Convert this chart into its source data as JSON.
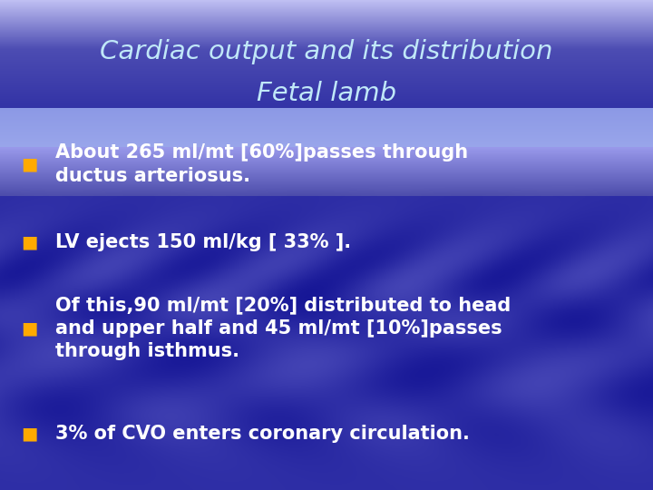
{
  "title_line1": "Cardiac output and its distribution",
  "title_line2": "Fetal lamb",
  "title_color": "#c0e8f8",
  "bullet_color": "#ffaa00",
  "text_color": "#ffffff",
  "bullet_texts": [
    "About 265 ml/mt [60%]passes through\nductus arteriosus.",
    "LV ejects 150 ml/kg [ 33% ].",
    "Of this,90 ml/mt [20%] distributed to head\nand upper half and 45 ml/mt [10%]passes\nthrough isthmus.",
    "3% of CVO enters coronary circulation."
  ],
  "figsize": [
    7.2,
    5.4
  ],
  "dpi": 100
}
